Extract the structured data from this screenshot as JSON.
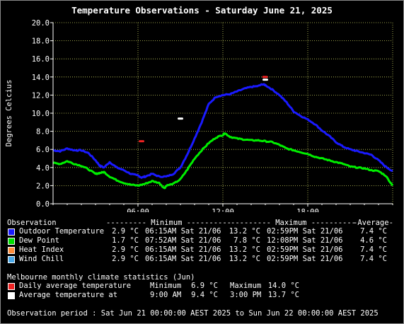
{
  "chart_data": {
    "type": "line",
    "title": "Temperature Observations - Saturday June 21, 2025",
    "ylabel": "Degrees Celcius",
    "xlabel": "",
    "ylim": [
      0,
      20
    ],
    "yticks": [
      "0.0",
      "2.0",
      "4.0",
      "6.0",
      "8.0",
      "10.0",
      "12.0",
      "14.0",
      "16.0",
      "18.0",
      "20.0"
    ],
    "xlim_hours": [
      0,
      24
    ],
    "xticks": [
      {
        "h": 6,
        "label": "06:00"
      },
      {
        "h": 12,
        "label": "12:00"
      },
      {
        "h": 18,
        "label": "18:00"
      }
    ],
    "grid": true,
    "series": [
      {
        "name": "Outdoor Temperature",
        "color": "#1a1aff",
        "x": [
          0,
          0.5,
          1,
          1.5,
          2,
          2.5,
          3,
          3.3,
          3.6,
          4,
          4.5,
          5,
          5.5,
          6,
          6.25,
          6.5,
          7,
          7.5,
          8,
          8.5,
          9,
          9.5,
          10,
          10.5,
          11,
          11.5,
          12,
          12.5,
          13,
          13.5,
          14,
          14.5,
          14.8,
          15,
          15.5,
          16,
          16.5,
          17,
          17.5,
          18,
          18.5,
          19,
          19.5,
          20,
          20.5,
          21,
          21.5,
          22,
          22.5,
          23,
          23.5,
          24
        ],
        "y": [
          5.9,
          5.8,
          6.1,
          5.9,
          5.9,
          5.6,
          4.8,
          4.2,
          4.0,
          4.6,
          4.0,
          3.7,
          3.3,
          3.1,
          2.9,
          3.0,
          3.3,
          3.0,
          3.0,
          3.3,
          4.0,
          5.5,
          7.2,
          9.0,
          11.0,
          11.8,
          12.0,
          12.1,
          12.4,
          12.7,
          12.9,
          13.0,
          13.2,
          13.1,
          12.6,
          12.0,
          11.2,
          10.2,
          9.7,
          9.3,
          8.8,
          8.1,
          7.5,
          6.8,
          6.3,
          6.0,
          5.8,
          5.6,
          5.4,
          4.8,
          4.1,
          3.6
        ]
      },
      {
        "name": "Dew Point",
        "color": "#00ee00",
        "x": [
          0,
          0.5,
          1,
          1.5,
          2,
          2.5,
          3,
          3.3,
          3.6,
          4,
          4.5,
          5,
          5.5,
          6,
          6.5,
          7,
          7.5,
          7.87,
          8,
          8.5,
          9,
          9.5,
          10,
          10.5,
          11,
          11.5,
          12,
          12.13,
          12.5,
          13,
          13.5,
          14,
          14.5,
          15,
          15.5,
          16,
          16.5,
          17,
          17.5,
          18,
          18.5,
          19,
          19.5,
          20,
          20.5,
          21,
          21.5,
          22,
          22.5,
          23,
          23.5,
          24
        ],
        "y": [
          4.5,
          4.4,
          4.7,
          4.4,
          4.2,
          3.8,
          3.3,
          3.4,
          3.5,
          3.0,
          2.6,
          2.3,
          2.1,
          2.0,
          2.2,
          2.5,
          2.3,
          1.7,
          2.0,
          2.2,
          2.7,
          3.8,
          5.0,
          5.9,
          6.7,
          7.3,
          7.6,
          7.8,
          7.4,
          7.2,
          7.1,
          7.0,
          7.0,
          6.9,
          6.8,
          6.5,
          6.1,
          5.9,
          5.7,
          5.5,
          5.2,
          5.0,
          4.8,
          4.6,
          4.4,
          4.1,
          4.0,
          3.9,
          3.7,
          3.6,
          3.1,
          2.0
        ]
      }
    ],
    "markers": [
      {
        "name": "Daily average temperature",
        "kind": "minimum",
        "time": "6:15AM",
        "h": 6.25,
        "value": 6.9,
        "color": "#ee2222"
      },
      {
        "name": "Daily average temperature",
        "kind": "maximum",
        "time": "2:59PM",
        "h": 14.98,
        "value": 14.0,
        "color": "#ee2222"
      },
      {
        "name": "Average temperature at",
        "kind": "at 9:00 AM",
        "h": 9.0,
        "value": 9.4,
        "color": "#ffffff"
      },
      {
        "name": "Average temperature at",
        "kind": "at 3:00 PM",
        "h": 15.0,
        "value": 13.7,
        "color": "#ffffff"
      }
    ]
  },
  "colors": {
    "background": "#000000",
    "grid": "#c8d060",
    "axis": "#ffffff"
  },
  "legend": {
    "header": {
      "observation": "Observation",
      "minimum": "--------- Minimum ----------",
      "maximum": "--------- Maximum ----------",
      "average": "-Average-"
    },
    "rows": [
      {
        "swatch": "#1a1aff",
        "name": "Outdoor Temperature",
        "min": "2.9 °C",
        "min_time": "06:15AM Sat 21/06",
        "max": "13.2 °C",
        "max_time": "02:59PM Sat 21/06",
        "avg": "7.4 °C"
      },
      {
        "swatch": "#00dd00",
        "name": "Dew Point",
        "min": "1.7 °C",
        "min_time": "07:52AM Sat 21/06",
        "max": "7.8 °C",
        "max_time": "12:08PM Sat 21/06",
        "avg": "4.6 °C"
      },
      {
        "swatch": "#ff8c3a",
        "name": "Heat Index",
        "min": "2.9 °C",
        "min_time": "06:15AM Sat 21/06",
        "max": "13.2 °C",
        "max_time": "02:59PM Sat 21/06",
        "avg": "7.4 °C"
      },
      {
        "swatch": "#4aa8e8",
        "name": "Wind Chill",
        "min": "2.9 °C",
        "min_time": "06:15AM Sat 21/06",
        "max": "13.2 °C",
        "max_time": "02:59PM Sat 21/06",
        "avg": "7.4 °C"
      }
    ]
  },
  "climate": {
    "title": "Melbourne monthly climate statistics (Jun)",
    "rows": [
      {
        "swatch": "#ee2222",
        "label": "Daily average temperature",
        "col1": "Minimum",
        "col2": "6.9 °C",
        "col3": "Maximum",
        "col4": "14.0 °C"
      },
      {
        "swatch": "#ffffff",
        "label": "Average temperature at",
        "col1": "9:00 AM",
        "col2": "9.4 °C",
        "col3": "3:00 PM",
        "col4": "13.7 °C"
      }
    ]
  },
  "period": "Observation period : Sat Jun 21 00:00:00 AEST 2025 to Sun Jun 22 00:00:00 AEST 2025"
}
